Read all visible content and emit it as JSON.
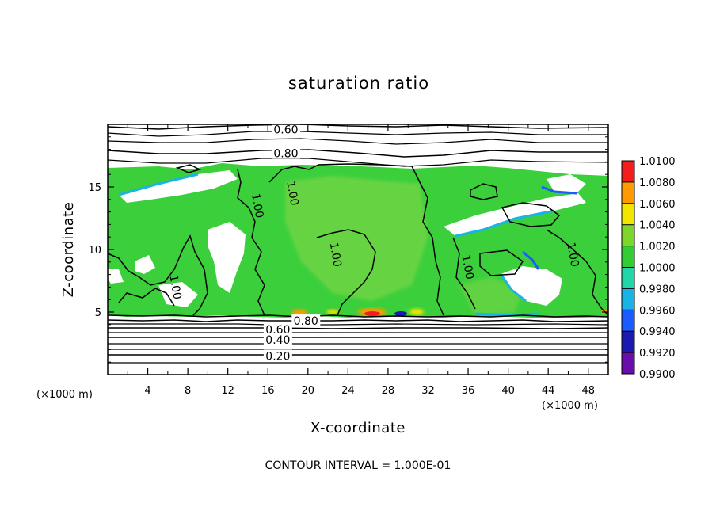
{
  "chart_data": {
    "type": "heatmap",
    "title": "saturation ratio",
    "xlabel": "X-coordinate",
    "ylabel": "Z-coordinate",
    "x_unit": "(×1000 m)",
    "y_unit": "(×1000 m)",
    "xlim": [
      0,
      50
    ],
    "ylim": [
      0,
      20
    ],
    "x_ticks": [
      "4",
      "8",
      "12",
      "16",
      "20",
      "24",
      "28",
      "32",
      "36",
      "40",
      "44",
      "48"
    ],
    "y_ticks": [
      "5",
      "10",
      "15"
    ],
    "colorbar": {
      "labels": [
        "0.9900",
        "0.9920",
        "0.9940",
        "0.9960",
        "0.9980",
        "1.0000",
        "1.0020",
        "1.0040",
        "1.0060",
        "1.0080",
        "1.0100"
      ],
      "colors": [
        "#6a0dad",
        "#1a1ab0",
        "#1a5cff",
        "#19b4e6",
        "#21d6a8",
        "#33cc33",
        "#7fd62a",
        "#f2e600",
        "#ff9a00",
        "#f21e1e",
        "#f7a5a5"
      ]
    },
    "contour_labels": [
      {
        "text": "0.60",
        "x": 17.8,
        "z": 19.6
      },
      {
        "text": "0.80",
        "x": 17.8,
        "z": 17.7
      },
      {
        "text": "1.00",
        "x": 15.0,
        "z": 13.5
      },
      {
        "text": "1.00",
        "x": 18.5,
        "z": 14.5
      },
      {
        "text": "1.00",
        "x": 22.8,
        "z": 9.6
      },
      {
        "text": "1.00",
        "x": 36.0,
        "z": 8.6
      },
      {
        "text": "1.00",
        "x": 46.5,
        "z": 9.6
      },
      {
        "text": "1.00",
        "x": 6.8,
        "z": 7.0
      },
      {
        "text": "0.80",
        "x": 19.8,
        "z": 4.3
      },
      {
        "text": "0.60",
        "x": 17.0,
        "z": 3.6
      },
      {
        "text": "0.40",
        "x": 17.0,
        "z": 2.8
      },
      {
        "text": "0.20",
        "x": 17.0,
        "z": 1.5
      }
    ],
    "grid": false
  },
  "footer": {
    "contour_interval": "CONTOUR INTERVAL = 1.000E-01"
  }
}
